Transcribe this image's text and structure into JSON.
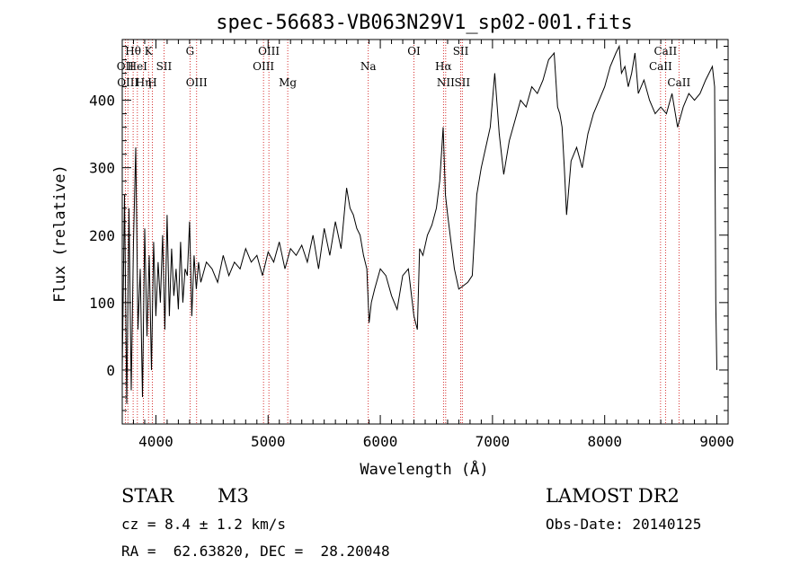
{
  "chart_data": {
    "type": "line",
    "title": "spec-56683-VB063N29V1_sp02-001.fits",
    "xlabel": "Wavelength (Å)",
    "ylabel": "Flux (relative)",
    "xlim": [
      3700,
      9100
    ],
    "ylim": [
      -80,
      490
    ],
    "xticks": [
      4000,
      5000,
      6000,
      7000,
      8000,
      9000
    ],
    "yticks": [
      0,
      100,
      200,
      300,
      400
    ],
    "grid": false,
    "series": [
      {
        "x": [
          3700,
          3720,
          3740,
          3760,
          3780,
          3800,
          3820,
          3840,
          3860,
          3880,
          3900,
          3920,
          3940,
          3960,
          3980,
          4000,
          4020,
          4040,
          4060,
          4080,
          4100,
          4120,
          4140,
          4160,
          4180,
          4200,
          4220,
          4240,
          4260,
          4280,
          4300,
          4320,
          4340,
          4360,
          4380,
          4400,
          4450,
          4500,
          4550,
          4600,
          4650,
          4700,
          4750,
          4800,
          4850,
          4900,
          4950,
          5000,
          5050,
          5100,
          5150,
          5200,
          5250,
          5300,
          5350,
          5400,
          5450,
          5500,
          5550,
          5600,
          5650,
          5700,
          5730,
          5760,
          5790,
          5820,
          5850,
          5880,
          5900,
          5920,
          5950,
          6000,
          6050,
          6100,
          6150,
          6200,
          6250,
          6300,
          6330,
          6350,
          6380,
          6420,
          6460,
          6500,
          6530,
          6560,
          6580,
          6600,
          6630,
          6660,
          6700,
          6740,
          6780,
          6820,
          6860,
          6900,
          6940,
          6980,
          7020,
          7060,
          7100,
          7150,
          7200,
          7250,
          7300,
          7350,
          7400,
          7450,
          7500,
          7550,
          7580,
          7600,
          7620,
          7640,
          7660,
          7680,
          7700,
          7750,
          7800,
          7850,
          7900,
          7950,
          8000,
          8050,
          8100,
          8130,
          8150,
          8180,
          8210,
          8240,
          8270,
          8300,
          8350,
          8400,
          8450,
          8500,
          8550,
          8600,
          8650,
          8700,
          8750,
          8800,
          8850,
          8900,
          8930,
          8960,
          8980,
          8990,
          9000
        ],
        "values": [
          0,
          260,
          -50,
          240,
          -30,
          190,
          330,
          60,
          150,
          -40,
          210,
          50,
          170,
          0,
          190,
          80,
          160,
          100,
          200,
          60,
          230,
          80,
          180,
          110,
          150,
          90,
          190,
          100,
          150,
          140,
          220,
          80,
          170,
          120,
          160,
          130,
          160,
          150,
          130,
          170,
          140,
          160,
          150,
          180,
          160,
          170,
          140,
          175,
          160,
          190,
          150,
          180,
          170,
          185,
          160,
          200,
          150,
          210,
          170,
          220,
          180,
          270,
          240,
          230,
          210,
          200,
          170,
          150,
          70,
          100,
          120,
          150,
          140,
          110,
          90,
          140,
          150,
          80,
          60,
          180,
          170,
          200,
          215,
          240,
          280,
          360,
          260,
          230,
          190,
          150,
          120,
          125,
          130,
          140,
          260,
          300,
          330,
          360,
          440,
          350,
          290,
          340,
          370,
          400,
          390,
          420,
          410,
          430,
          460,
          470,
          390,
          380,
          360,
          300,
          230,
          270,
          310,
          330,
          300,
          350,
          380,
          400,
          420,
          450,
          470,
          480,
          440,
          450,
          420,
          440,
          470,
          410,
          430,
          400,
          380,
          390,
          380,
          410,
          360,
          390,
          410,
          400,
          410,
          430,
          440,
          450,
          420,
          100,
          0
        ]
      }
    ],
    "annotations": [
      {
        "label": "Hθ",
        "x": 3797,
        "row": 1
      },
      {
        "label": "K",
        "x": 3934,
        "row": 1
      },
      {
        "label": "G",
        "x": 4304,
        "row": 1
      },
      {
        "label": "OIII",
        "x": 5007,
        "row": 1
      },
      {
        "label": "OI",
        "x": 6300,
        "row": 1
      },
      {
        "label": "SII",
        "x": 6717,
        "row": 1
      },
      {
        "label": "CaII",
        "x": 8542,
        "row": 1
      },
      {
        "label": "OII",
        "x": 3727,
        "row": 2
      },
      {
        "label": "HeI",
        "x": 3835,
        "row": 2
      },
      {
        "label": "SII",
        "x": 4072,
        "row": 2
      },
      {
        "label": "OIII",
        "x": 4959,
        "row": 2
      },
      {
        "label": "Na",
        "x": 5893,
        "row": 2
      },
      {
        "label": "Hα",
        "x": 6563,
        "row": 2
      },
      {
        "label": "CaII",
        "x": 8498,
        "row": 2
      },
      {
        "label": "OIII",
        "x": 3750,
        "row": 3
      },
      {
        "label": "Hη",
        "x": 3889,
        "row": 3
      },
      {
        "label": "H",
        "x": 3968,
        "row": 3
      },
      {
        "label": "OIII",
        "x": 4363,
        "row": 3
      },
      {
        "label": "Mg",
        "x": 5175,
        "row": 3
      },
      {
        "label": "NII",
        "x": 6583,
        "row": 3
      },
      {
        "label": "SII",
        "x": 6731,
        "row": 3
      },
      {
        "label": "CaII",
        "x": 8662,
        "row": 3
      }
    ],
    "line_color": "#000000",
    "marker_line_color": "#cc0000"
  },
  "info": {
    "object_class": "STAR",
    "subclass": "M3",
    "survey": "LAMOST DR2",
    "cz": "cz = 8.4 ± 1.2 km/s",
    "obs_date": "Obs-Date: 20140125",
    "coords": "RA =  62.63820, DEC =  28.20048"
  }
}
